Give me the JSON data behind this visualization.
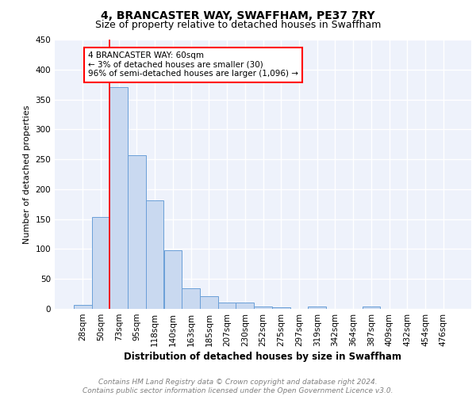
{
  "title1": "4, BRANCASTER WAY, SWAFFHAM, PE37 7RY",
  "title2": "Size of property relative to detached houses in Swaffham",
  "xlabel": "Distribution of detached houses by size in Swaffham",
  "ylabel": "Number of detached properties",
  "categories": [
    "28sqm",
    "50sqm",
    "73sqm",
    "95sqm",
    "118sqm",
    "140sqm",
    "163sqm",
    "185sqm",
    "207sqm",
    "230sqm",
    "252sqm",
    "275sqm",
    "297sqm",
    "319sqm",
    "342sqm",
    "364sqm",
    "387sqm",
    "409sqm",
    "432sqm",
    "454sqm",
    "476sqm"
  ],
  "values": [
    7,
    153,
    370,
    257,
    181,
    98,
    35,
    21,
    11,
    10,
    4,
    2,
    0,
    4,
    0,
    0,
    4,
    0,
    0,
    0,
    0
  ],
  "bar_color": "#c9d9f0",
  "bar_edge_color": "#6a9fd8",
  "vline_x": 1.5,
  "annotation_text": "4 BRANCASTER WAY: 60sqm\n← 3% of detached houses are smaller (30)\n96% of semi-detached houses are larger (1,096) →",
  "annotation_box_color": "white",
  "annotation_box_edge_color": "red",
  "vline_color": "red",
  "ylim": [
    0,
    450
  ],
  "yticks": [
    0,
    50,
    100,
    150,
    200,
    250,
    300,
    350,
    400,
    450
  ],
  "background_color": "#eef2fb",
  "grid_color": "white",
  "footer_text": "Contains HM Land Registry data © Crown copyright and database right 2024.\nContains public sector information licensed under the Open Government Licence v3.0.",
  "title1_fontsize": 10,
  "title2_fontsize": 9,
  "xlabel_fontsize": 8.5,
  "ylabel_fontsize": 8,
  "tick_fontsize": 7.5,
  "footer_fontsize": 6.5
}
